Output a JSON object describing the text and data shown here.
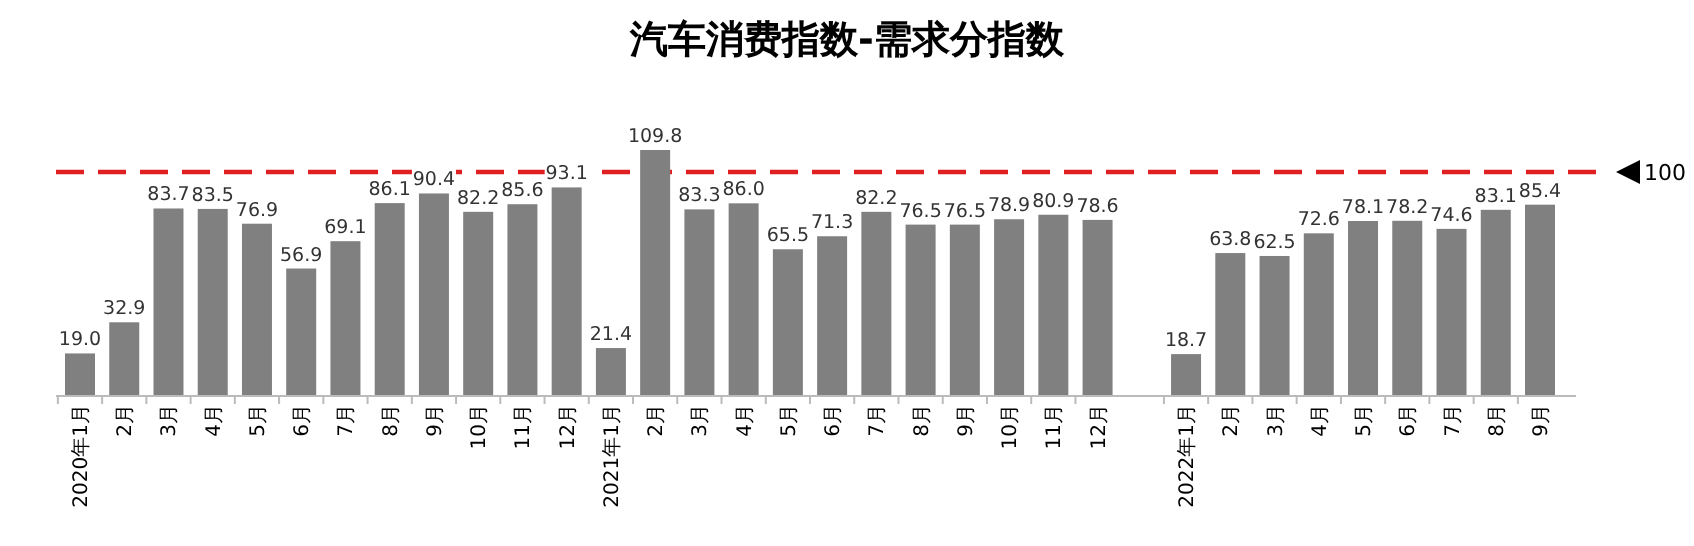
{
  "chart_data": {
    "type": "bar",
    "title": "汽车消费指数-需求分指数",
    "categories": [
      "2020年1月",
      "2月",
      "3月",
      "4月",
      "5月",
      "6月",
      "7月",
      "8月",
      "9月",
      "10月",
      "11月",
      "12月",
      "2021年1月",
      "2月",
      "3月",
      "4月",
      "5月",
      "6月",
      "7月",
      "8月",
      "9月",
      "10月",
      "11月",
      "12月",
      null,
      "2022年1月",
      "2月",
      "3月",
      "4月",
      "5月",
      "6月",
      "7月",
      "8月",
      "9月"
    ],
    "values": [
      19.0,
      32.9,
      83.7,
      83.5,
      76.9,
      56.9,
      69.1,
      86.1,
      90.4,
      82.2,
      85.6,
      93.1,
      21.4,
      109.8,
      83.3,
      86.0,
      65.5,
      71.3,
      82.2,
      76.5,
      76.5,
      78.9,
      80.9,
      78.6,
      null,
      18.7,
      63.8,
      62.5,
      72.6,
      78.1,
      78.2,
      74.6,
      83.1,
      85.4
    ],
    "value_labels": [
      "19.0",
      "32.9",
      "83.7",
      "83.5",
      "76.9",
      "56.9",
      "69.1",
      "86.1",
      "90.4",
      "82.2",
      "85.6",
      "93.1",
      "21.4",
      "109.8",
      "83.3",
      "86.0",
      "65.5",
      "71.3",
      "82.2",
      "76.5",
      "76.5",
      "78.9",
      "80.9",
      "78.6",
      null,
      "18.7",
      "63.8",
      "62.5",
      "72.6",
      "78.1",
      "78.2",
      "74.6",
      "83.1",
      "85.4"
    ],
    "color": "#808080",
    "ref_lines": [
      {
        "axis": "y",
        "value": 100,
        "label": "100",
        "color": "#e02020",
        "line_style": "dashed"
      }
    ]
  }
}
